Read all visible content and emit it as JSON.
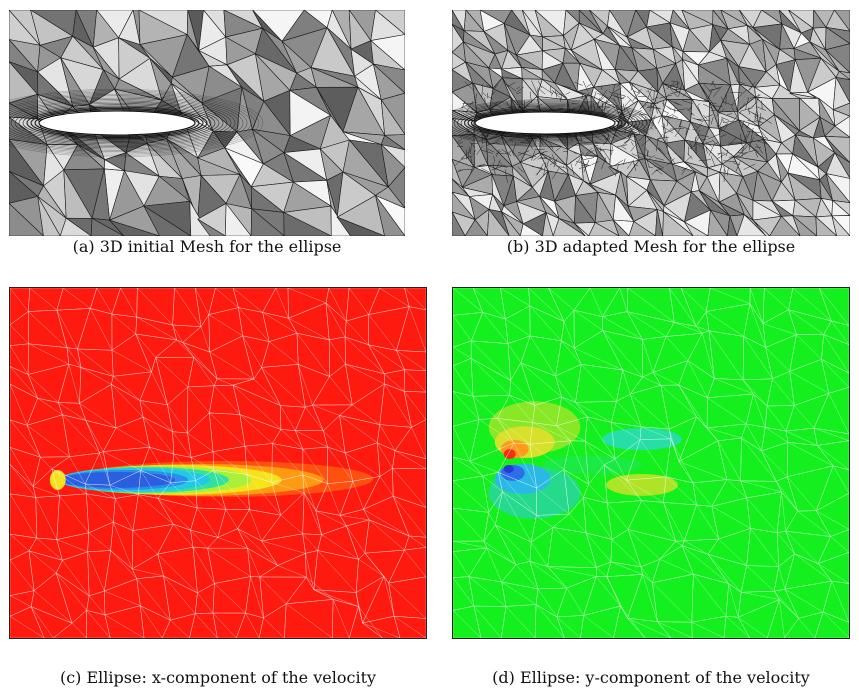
{
  "figure": {
    "panels": [
      {
        "id": "a",
        "caption": "(a) 3D initial Mesh for the ellipse"
      },
      {
        "id": "b",
        "caption": "(b) 3D adapted Mesh for the ellipse"
      },
      {
        "id": "c",
        "caption": "(c) Ellipse: x-component of the velocity"
      },
      {
        "id": "d",
        "caption": "(d) Ellipse: y-component of the velocity"
      }
    ]
  }
}
